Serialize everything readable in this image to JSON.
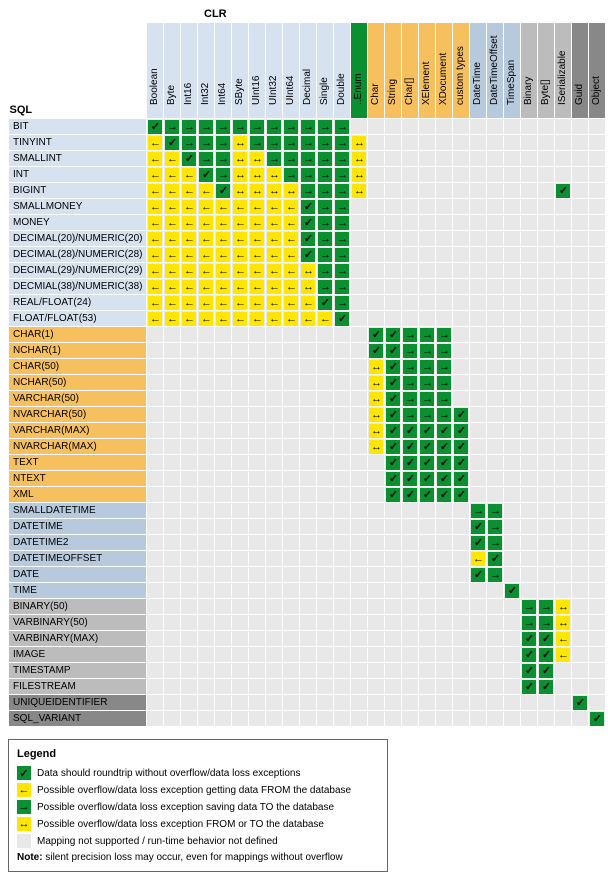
{
  "headers": {
    "sql": "SQL",
    "clr": "CLR"
  },
  "colGroups": [
    {
      "bg": "#d6e2ef",
      "cols": [
        "Boolean",
        "Byte",
        "Int16",
        "Int32",
        "Int64",
        "SByte",
        "UInt16",
        "UInt32",
        "UInt64",
        "Decimal",
        "Single",
        "Double"
      ]
    },
    {
      "bg": "#0a9030",
      "cols": [
        "..Enum"
      ]
    },
    {
      "bg": "#f7c05f",
      "cols": [
        "Char",
        "String",
        "Char[]",
        "XElement",
        "XDocument",
        "custom types"
      ]
    },
    {
      "bg": "#b7c9dc",
      "cols": [
        "DateTime",
        "DateTimeOffset",
        "TimeSpan"
      ]
    },
    {
      "bg": "#bcbcbc",
      "cols": [
        "Binary",
        "Byte[]",
        "ISerializable"
      ]
    },
    {
      "bg": "#888888",
      "cols": [
        "Guid",
        "Object"
      ]
    }
  ],
  "rowGroups": [
    {
      "bg": "#d6e2ef",
      "rows": [
        {
          "label": "BIT",
          "cells": {
            "0": "G",
            "1": "T",
            "2": "T",
            "3": "T",
            "4": "T",
            "5": "T",
            "6": "T",
            "7": "T",
            "8": "T",
            "9": "T",
            "10": "T",
            "11": "T"
          }
        },
        {
          "label": "TINYINT",
          "cells": {
            "0": "F",
            "1": "G",
            "2": "T",
            "3": "T",
            "4": "T",
            "5": "B",
            "6": "T",
            "7": "T",
            "8": "T",
            "9": "T",
            "10": "T",
            "11": "T",
            "12": "B"
          }
        },
        {
          "label": "SMALLINT",
          "cells": {
            "0": "F",
            "1": "F",
            "2": "G",
            "3": "T",
            "4": "T",
            "5": "B",
            "6": "B",
            "7": "T",
            "8": "T",
            "9": "T",
            "10": "T",
            "11": "T",
            "12": "B"
          }
        },
        {
          "label": "INT",
          "cells": {
            "0": "F",
            "1": "F",
            "2": "F",
            "3": "G",
            "4": "T",
            "5": "B",
            "6": "B",
            "7": "B",
            "8": "T",
            "9": "T",
            "10": "T",
            "11": "T",
            "12": "B"
          }
        },
        {
          "label": "BIGINT",
          "cells": {
            "0": "F",
            "1": "F",
            "2": "F",
            "3": "F",
            "4": "G",
            "5": "B",
            "6": "B",
            "7": "B",
            "8": "B",
            "9": "T",
            "10": "T",
            "11": "T",
            "12": "B",
            "24": "G"
          }
        },
        {
          "label": "SMALLMONEY",
          "cells": {
            "0": "F",
            "1": "F",
            "2": "F",
            "3": "F",
            "4": "F",
            "5": "F",
            "6": "F",
            "7": "F",
            "8": "F",
            "9": "G",
            "10": "T",
            "11": "T"
          }
        },
        {
          "label": "MONEY",
          "cells": {
            "0": "F",
            "1": "F",
            "2": "F",
            "3": "F",
            "4": "F",
            "5": "F",
            "6": "F",
            "7": "F",
            "8": "F",
            "9": "G",
            "10": "T",
            "11": "T"
          }
        },
        {
          "label": "DECIMAL(20)/NUMERIC(20)",
          "cells": {
            "0": "F",
            "1": "F",
            "2": "F",
            "3": "F",
            "4": "F",
            "5": "F",
            "6": "F",
            "7": "F",
            "8": "F",
            "9": "G",
            "10": "T",
            "11": "T"
          }
        },
        {
          "label": "DECIMAL(28)/NUMERIC(28)",
          "cells": {
            "0": "F",
            "1": "F",
            "2": "F",
            "3": "F",
            "4": "F",
            "5": "F",
            "6": "F",
            "7": "F",
            "8": "F",
            "9": "G",
            "10": "T",
            "11": "T"
          }
        },
        {
          "label": "DECIMAL(29)/NUMERIC(29)",
          "cells": {
            "0": "F",
            "1": "F",
            "2": "F",
            "3": "F",
            "4": "F",
            "5": "F",
            "6": "F",
            "7": "F",
            "8": "F",
            "9": "B",
            "10": "T",
            "11": "T"
          }
        },
        {
          "label": "DECMIAL(38)/NUMERIC(38)",
          "cells": {
            "0": "F",
            "1": "F",
            "2": "F",
            "3": "F",
            "4": "F",
            "5": "F",
            "6": "F",
            "7": "F",
            "8": "F",
            "9": "B",
            "10": "T",
            "11": "T"
          }
        },
        {
          "label": "REAL/FLOAT(24)",
          "cells": {
            "0": "F",
            "1": "F",
            "2": "F",
            "3": "F",
            "4": "F",
            "5": "F",
            "6": "F",
            "7": "F",
            "8": "F",
            "9": "F",
            "10": "G",
            "11": "T"
          }
        },
        {
          "label": "FLOAT/FLOAT(53)",
          "cells": {
            "0": "F",
            "1": "F",
            "2": "F",
            "3": "F",
            "4": "F",
            "5": "F",
            "6": "F",
            "7": "F",
            "8": "F",
            "9": "F",
            "10": "F",
            "11": "G"
          }
        }
      ]
    },
    {
      "bg": "#f7c05f",
      "rows": [
        {
          "label": "CHAR(1)",
          "cells": {
            "13": "G",
            "14": "G",
            "15": "T",
            "16": "T",
            "17": "T"
          }
        },
        {
          "label": "NCHAR(1)",
          "cells": {
            "13": "G",
            "14": "G",
            "15": "T",
            "16": "T",
            "17": "T"
          }
        },
        {
          "label": "CHAR(50)",
          "cells": {
            "13": "B",
            "14": "G",
            "15": "T",
            "16": "T",
            "17": "T"
          }
        },
        {
          "label": "NCHAR(50)",
          "cells": {
            "13": "B",
            "14": "G",
            "15": "T",
            "16": "T",
            "17": "T"
          }
        },
        {
          "label": "VARCHAR(50)",
          "cells": {
            "13": "B",
            "14": "G",
            "15": "T",
            "16": "T",
            "17": "T"
          }
        },
        {
          "label": "NVARCHAR(50)",
          "cells": {
            "13": "B",
            "14": "G",
            "15": "T",
            "16": "T",
            "17": "T",
            "18": "G"
          }
        },
        {
          "label": "VARCHAR(MAX)",
          "cells": {
            "13": "B",
            "14": "G",
            "15": "G",
            "16": "G",
            "17": "G",
            "18": "G"
          }
        },
        {
          "label": "NVARCHAR(MAX)",
          "cells": {
            "13": "B",
            "14": "G",
            "15": "G",
            "16": "G",
            "17": "G",
            "18": "G"
          }
        },
        {
          "label": "TEXT",
          "cells": {
            "14": "G",
            "15": "G",
            "16": "G",
            "17": "G",
            "18": "G"
          }
        },
        {
          "label": "NTEXT",
          "cells": {
            "14": "G",
            "15": "G",
            "16": "G",
            "17": "G",
            "18": "G"
          }
        },
        {
          "label": "XML",
          "cells": {
            "14": "G",
            "15": "G",
            "16": "G",
            "17": "G",
            "18": "G"
          }
        }
      ]
    },
    {
      "bg": "#b7c9dc",
      "rows": [
        {
          "label": "SMALLDATETIME",
          "cells": {
            "19": "T",
            "20": "T"
          }
        },
        {
          "label": "DATETIME",
          "cells": {
            "19": "G",
            "20": "T"
          }
        },
        {
          "label": "DATETIME2",
          "cells": {
            "19": "G",
            "20": "T"
          }
        },
        {
          "label": "DATETIMEOFFSET",
          "cells": {
            "19": "F",
            "20": "G"
          }
        },
        {
          "label": "DATE",
          "cells": {
            "19": "G",
            "20": "T"
          }
        },
        {
          "label": "TIME",
          "cells": {
            "21": "G"
          }
        }
      ]
    },
    {
      "bg": "#bcbcbc",
      "rows": [
        {
          "label": "BINARY(50)",
          "cells": {
            "22": "T",
            "23": "T",
            "24": "B"
          }
        },
        {
          "label": "VARBINARY(50)",
          "cells": {
            "22": "T",
            "23": "T",
            "24": "B"
          }
        },
        {
          "label": "VARBINARY(MAX)",
          "cells": {
            "22": "G",
            "23": "G",
            "24": "F"
          }
        },
        {
          "label": "IMAGE",
          "cells": {
            "22": "G",
            "23": "G",
            "24": "F"
          }
        },
        {
          "label": "TIMESTAMP",
          "cells": {
            "22": "G",
            "23": "G"
          }
        },
        {
          "label": "FILESTREAM",
          "cells": {
            "22": "G",
            "23": "G"
          }
        }
      ]
    },
    {
      "bg": "#888888",
      "rows": [
        {
          "label": "UNIQUEIDENTIFIER",
          "cells": {
            "25": "G"
          }
        },
        {
          "label": "SQL_VARIANT",
          "cells": {
            "26": "G"
          }
        }
      ]
    }
  ],
  "glyphs": {
    "G": {
      "bg": "c-g",
      "char": "✓"
    },
    "F": {
      "bg": "c-y",
      "char": "←"
    },
    "T": {
      "bg": "c-g",
      "char": "→"
    },
    "B": {
      "bg": "c-y",
      "char": "↔"
    }
  },
  "legend": {
    "title": "Legend",
    "items": [
      {
        "k": "G",
        "text": "Data should roundtrip without overflow/data loss exceptions"
      },
      {
        "k": "F",
        "text": "Possible overflow/data loss exception getting data FROM the database"
      },
      {
        "k": "T",
        "text": "Possible overflow/data loss exception saving data TO the database"
      },
      {
        "k": "B",
        "text": "Possible overflow/data loss exception FROM or TO the database"
      },
      {
        "k": "",
        "text": "Mapping not supported / run-time behavior not defined"
      }
    ],
    "noteLabel": "Note:",
    "note": "silent precision loss may occur, even for mappings without overflow"
  }
}
